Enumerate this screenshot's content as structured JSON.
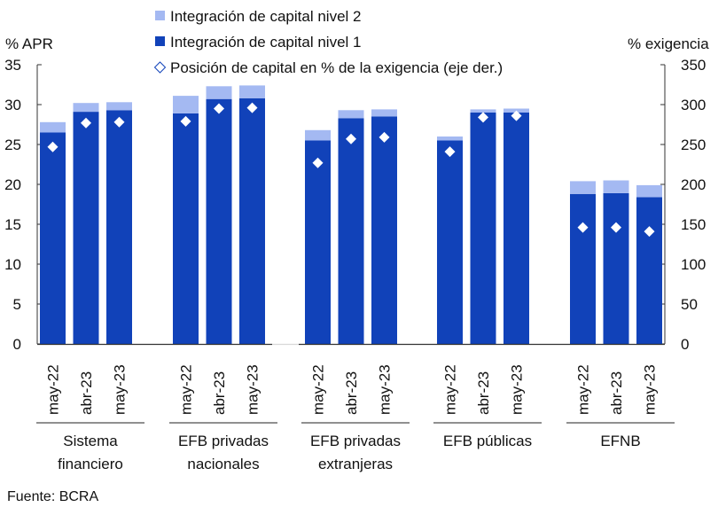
{
  "chart_data": {
    "type": "bar",
    "stacked": true,
    "left_axis": {
      "label": "% APR",
      "range": [
        0,
        35
      ],
      "ticks": [
        "0",
        "5",
        "10",
        "15",
        "20",
        "25",
        "30",
        "35"
      ]
    },
    "right_axis": {
      "label": "% exigencia",
      "range": [
        0,
        350
      ],
      "ticks": [
        "0",
        "50",
        "100",
        "150",
        "200",
        "250",
        "300",
        "350"
      ]
    },
    "legend": {
      "placement": "top-center",
      "items": [
        {
          "label": "Integración de capital nivel 2",
          "marker": "square",
          "color": "#a4b9f2"
        },
        {
          "label": "Integración de capital nivel 1",
          "marker": "square",
          "color": "#1142b9"
        },
        {
          "label": "Posición de capital en % de la exigencia (eje der.)",
          "marker": "diamond",
          "color": "#1142b9"
        }
      ]
    },
    "groups": [
      {
        "name": "Sistema financiero",
        "lines": [
          "Sistema",
          "financiero"
        ]
      },
      {
        "name": "EFB privadas nacionales",
        "lines": [
          "EFB privadas",
          "nacionales"
        ]
      },
      {
        "name": "EFB privadas extranjeras",
        "lines": [
          "EFB privadas",
          "extranjeras"
        ]
      },
      {
        "name": "EFB públicas",
        "lines": [
          "EFB públicas"
        ]
      },
      {
        "name": "EFNB",
        "lines": [
          "EFNB"
        ]
      }
    ],
    "categories": [
      "may-22",
      "abr-23",
      "may-23"
    ],
    "series": [
      {
        "name": "Integración de capital nivel 1",
        "axis": "left",
        "values": [
          [
            26.5,
            29.1,
            29.3
          ],
          [
            28.9,
            30.7,
            30.8
          ],
          [
            25.5,
            28.3,
            28.5
          ],
          [
            25.5,
            29.0,
            29.0
          ],
          [
            18.8,
            18.9,
            18.4
          ]
        ]
      },
      {
        "name": "Integración de capital nivel 2",
        "axis": "left",
        "values": [
          [
            1.3,
            1.1,
            1.0
          ],
          [
            2.2,
            1.6,
            1.6
          ],
          [
            1.3,
            1.0,
            0.9
          ],
          [
            0.5,
            0.4,
            0.5
          ],
          [
            1.6,
            1.6,
            1.5
          ]
        ]
      },
      {
        "name": "Posición de capital en % de la exigencia",
        "axis": "right",
        "values": [
          [
            247,
            277,
            278
          ],
          [
            279,
            295,
            296
          ],
          [
            227,
            257,
            259
          ],
          [
            241,
            284,
            286
          ],
          [
            146,
            146,
            141
          ]
        ]
      }
    ],
    "colors": {
      "nivel1": "#1142b9",
      "nivel2": "#a4b9f2",
      "diamond": "#ffffff",
      "axis": "#333333"
    }
  },
  "source": "Fuente: BCRA"
}
